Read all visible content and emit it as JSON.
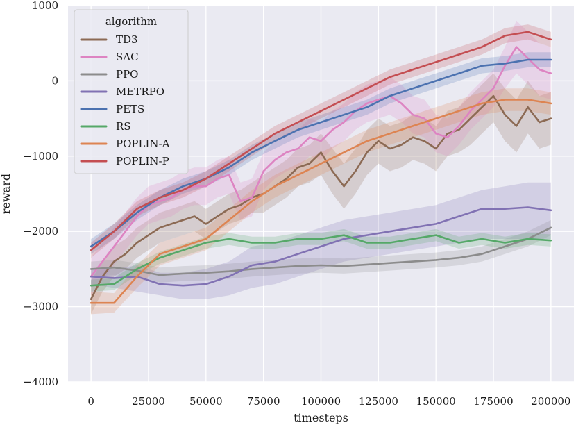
{
  "chart_data": {
    "type": "line",
    "xlabel": "timesteps",
    "ylabel": "reward",
    "xlim": [
      -10000,
      210000
    ],
    "ylim": [
      -4000,
      1000
    ],
    "xticks": [
      0,
      25000,
      50000,
      75000,
      100000,
      125000,
      150000,
      175000,
      200000
    ],
    "yticks": [
      -4000,
      -3000,
      -2000,
      -1000,
      0,
      1000
    ],
    "xtick_labels": [
      "0",
      "25000",
      "50000",
      "75000",
      "100000",
      "125000",
      "150000",
      "175000",
      "200000"
    ],
    "ytick_labels": [
      "−4000",
      "−3000",
      "−2000",
      "−1000",
      "0",
      "1000"
    ],
    "grid": true,
    "background": "#eaeaf2",
    "legend": {
      "title": "algorithm",
      "placement": "top-left"
    },
    "series": [
      {
        "name": "TD3",
        "color": "#8c6a54",
        "x": [
          0,
          5000,
          10000,
          15000,
          20000,
          25000,
          30000,
          35000,
          40000,
          45000,
          50000,
          55000,
          60000,
          65000,
          70000,
          75000,
          80000,
          85000,
          90000,
          95000,
          100000,
          105000,
          110000,
          115000,
          120000,
          125000,
          130000,
          135000,
          140000,
          145000,
          150000,
          155000,
          160000,
          165000,
          170000,
          175000,
          180000,
          185000,
          190000,
          195000,
          200000
        ],
        "y": [
          -2900,
          -2600,
          -2400,
          -2300,
          -2150,
          -2050,
          -1950,
          -1900,
          -1850,
          -1800,
          -1900,
          -1800,
          -1700,
          -1650,
          -1550,
          -1500,
          -1400,
          -1300,
          -1150,
          -1100,
          -950,
          -1200,
          -1400,
          -1200,
          -950,
          -800,
          -900,
          -850,
          -750,
          -800,
          -900,
          -700,
          -650,
          -500,
          -350,
          -200,
          -450,
          -600,
          -350,
          -550,
          -500
        ],
        "lo": [
          -3100,
          -2800,
          -2600,
          -2500,
          -2350,
          -2250,
          -2150,
          -2100,
          -2050,
          -2000,
          -2100,
          -2000,
          -1900,
          -1850,
          -1750,
          -1750,
          -1650,
          -1550,
          -1400,
          -1350,
          -1250,
          -1500,
          -1700,
          -1500,
          -1250,
          -1100,
          -1200,
          -1150,
          -1050,
          -1100,
          -1200,
          -1000,
          -950,
          -850,
          -700,
          -550,
          -800,
          -950,
          -700,
          -900,
          -850
        ],
        "hi": [
          -2650,
          -2400,
          -2200,
          -2100,
          -1950,
          -1850,
          -1750,
          -1700,
          -1650,
          -1600,
          -1700,
          -1600,
          -1500,
          -1450,
          -1350,
          -1250,
          -1150,
          -1050,
          -900,
          -850,
          -700,
          -900,
          -1100,
          -900,
          -650,
          -500,
          -600,
          -550,
          -450,
          -500,
          -600,
          -400,
          -350,
          -200,
          -50,
          100,
          -100,
          -250,
          0,
          -200,
          -150
        ]
      },
      {
        "name": "SAC",
        "color": "#dd84c2",
        "x": [
          0,
          5000,
          10000,
          15000,
          20000,
          25000,
          30000,
          35000,
          40000,
          45000,
          50000,
          55000,
          60000,
          65000,
          70000,
          75000,
          80000,
          85000,
          90000,
          95000,
          100000,
          105000,
          110000,
          115000,
          120000,
          125000,
          130000,
          135000,
          140000,
          145000,
          150000,
          155000,
          160000,
          165000,
          170000,
          175000,
          180000,
          185000,
          190000,
          195000,
          200000
        ],
        "y": [
          -2600,
          -2400,
          -2200,
          -2000,
          -1800,
          -1650,
          -1600,
          -1550,
          -1450,
          -1400,
          -1400,
          -1300,
          -1250,
          -1600,
          -1550,
          -1200,
          -1050,
          -950,
          -900,
          -750,
          -800,
          -650,
          -550,
          -400,
          -300,
          -250,
          -200,
          -300,
          -450,
          -500,
          -700,
          -750,
          -600,
          -400,
          -250,
          -100,
          200,
          450,
          300,
          150,
          100
        ],
        "lo": [
          -2850,
          -2650,
          -2450,
          -2250,
          -2050,
          -1900,
          -1850,
          -1800,
          -1700,
          -1650,
          -1650,
          -1550,
          -1500,
          -1850,
          -1800,
          -1450,
          -1300,
          -1200,
          -1150,
          -1000,
          -1050,
          -900,
          -800,
          -650,
          -550,
          -500,
          -450,
          -550,
          -700,
          -750,
          -950,
          -1000,
          -850,
          -650,
          -500,
          -350,
          -100,
          100,
          -50,
          -200,
          -250
        ],
        "hi": [
          -2350,
          -2150,
          -1950,
          -1750,
          -1550,
          -1400,
          -1350,
          -1300,
          -1200,
          -1150,
          -1150,
          -1050,
          -1000,
          -1350,
          -1300,
          -950,
          -800,
          -700,
          -650,
          -500,
          -550,
          -400,
          -300,
          -150,
          -50,
          0,
          50,
          -50,
          -200,
          -250,
          -450,
          -500,
          -350,
          -150,
          0,
          150,
          450,
          800,
          650,
          500,
          450
        ]
      },
      {
        "name": "PPO",
        "color": "#8c8c8c",
        "x": [
          0,
          10000,
          20000,
          30000,
          40000,
          50000,
          60000,
          70000,
          80000,
          90000,
          100000,
          110000,
          120000,
          130000,
          140000,
          150000,
          160000,
          170000,
          180000,
          190000,
          200000
        ],
        "y": [
          -2500,
          -2480,
          -2520,
          -2580,
          -2560,
          -2550,
          -2530,
          -2500,
          -2480,
          -2460,
          -2450,
          -2460,
          -2440,
          -2420,
          -2400,
          -2380,
          -2350,
          -2300,
          -2200,
          -2100,
          -1950
        ],
        "lo": [
          -2600,
          -2580,
          -2620,
          -2680,
          -2660,
          -2650,
          -2630,
          -2600,
          -2580,
          -2560,
          -2550,
          -2560,
          -2540,
          -2520,
          -2500,
          -2480,
          -2450,
          -2400,
          -2300,
          -2200,
          -2050
        ],
        "hi": [
          -2400,
          -2380,
          -2420,
          -2480,
          -2460,
          -2450,
          -2430,
          -2400,
          -2380,
          -2360,
          -2350,
          -2360,
          -2340,
          -2320,
          -2300,
          -2280,
          -2250,
          -2200,
          -2100,
          -2000,
          -1850
        ]
      },
      {
        "name": "METRPO",
        "color": "#8172b3",
        "x": [
          0,
          10000,
          20000,
          30000,
          40000,
          50000,
          60000,
          70000,
          80000,
          90000,
          100000,
          110000,
          120000,
          130000,
          140000,
          150000,
          160000,
          170000,
          180000,
          190000,
          200000
        ],
        "y": [
          -2600,
          -2620,
          -2600,
          -2700,
          -2720,
          -2700,
          -2600,
          -2450,
          -2400,
          -2300,
          -2200,
          -2100,
          -2050,
          -2000,
          -1950,
          -1900,
          -1800,
          -1700,
          -1700,
          -1680,
          -1720
        ],
        "lo": [
          -2700,
          -2750,
          -2800,
          -2850,
          -2900,
          -2900,
          -2850,
          -2750,
          -2700,
          -2600,
          -2500,
          -2400,
          -2350,
          -2300,
          -2250,
          -2200,
          -2150,
          -2100,
          -2100,
          -2100,
          -2100
        ],
        "hi": [
          -2500,
          -2500,
          -2450,
          -2550,
          -2550,
          -2500,
          -2400,
          -2200,
          -2150,
          -2050,
          -1950,
          -1850,
          -1800,
          -1750,
          -1700,
          -1650,
          -1550,
          -1450,
          -1400,
          -1350,
          -1350
        ]
      },
      {
        "name": "PETS",
        "color": "#4c72b0",
        "x": [
          0,
          10000,
          20000,
          30000,
          40000,
          50000,
          60000,
          70000,
          80000,
          90000,
          100000,
          110000,
          120000,
          130000,
          140000,
          150000,
          160000,
          170000,
          180000,
          190000,
          200000
        ],
        "y": [
          -2200,
          -2000,
          -1750,
          -1550,
          -1400,
          -1300,
          -1150,
          -950,
          -800,
          -650,
          -550,
          -450,
          -350,
          -200,
          -100,
          0,
          100,
          200,
          230,
          280,
          280
        ],
        "lo": [
          -2300,
          -2100,
          -1850,
          -1650,
          -1500,
          -1400,
          -1250,
          -1050,
          -900,
          -750,
          -650,
          -550,
          -450,
          -300,
          -200,
          -100,
          0,
          100,
          130,
          180,
          180
        ],
        "hi": [
          -2100,
          -1900,
          -1650,
          -1450,
          -1300,
          -1200,
          -1050,
          -850,
          -700,
          -550,
          -450,
          -350,
          -250,
          -100,
          0,
          100,
          200,
          300,
          330,
          380,
          380
        ]
      },
      {
        "name": "RS",
        "color": "#55a868",
        "x": [
          0,
          10000,
          20000,
          30000,
          40000,
          50000,
          60000,
          70000,
          80000,
          90000,
          100000,
          110000,
          120000,
          130000,
          140000,
          150000,
          160000,
          170000,
          180000,
          190000,
          200000
        ],
        "y": [
          -2720,
          -2700,
          -2500,
          -2350,
          -2250,
          -2150,
          -2100,
          -2150,
          -2150,
          -2100,
          -2100,
          -2050,
          -2150,
          -2150,
          -2100,
          -2050,
          -2150,
          -2100,
          -2150,
          -2100,
          -2120
        ],
        "lo": [
          -2800,
          -2780,
          -2580,
          -2430,
          -2330,
          -2230,
          -2180,
          -2230,
          -2230,
          -2180,
          -2180,
          -2130,
          -2230,
          -2230,
          -2180,
          -2130,
          -2230,
          -2180,
          -2230,
          -2180,
          -2200
        ],
        "hi": [
          -2640,
          -2620,
          -2420,
          -2270,
          -2170,
          -2070,
          -2020,
          -2070,
          -2070,
          -2020,
          -2020,
          -1970,
          -2070,
          -2070,
          -2020,
          -1970,
          -2070,
          -2020,
          -2070,
          -2020,
          -2040
        ]
      },
      {
        "name": "POPLIN-A",
        "color": "#dd8452",
        "x": [
          0,
          10000,
          20000,
          30000,
          40000,
          50000,
          60000,
          70000,
          80000,
          90000,
          100000,
          110000,
          120000,
          130000,
          140000,
          150000,
          160000,
          170000,
          180000,
          190000,
          200000
        ],
        "y": [
          -2950,
          -2950,
          -2600,
          -2300,
          -2200,
          -2100,
          -1850,
          -1600,
          -1400,
          -1250,
          -1100,
          -950,
          -800,
          -700,
          -600,
          -500,
          -400,
          -300,
          -250,
          -250,
          -300
        ],
        "lo": [
          -3100,
          -3080,
          -2750,
          -2450,
          -2350,
          -2250,
          -2000,
          -1750,
          -1550,
          -1400,
          -1250,
          -1100,
          -950,
          -850,
          -750,
          -650,
          -550,
          -450,
          -400,
          -400,
          -450
        ],
        "hi": [
          -2800,
          -2820,
          -2450,
          -2150,
          -2050,
          -1950,
          -1700,
          -1450,
          -1250,
          -1100,
          -950,
          -800,
          -650,
          -550,
          -450,
          -350,
          -250,
          -150,
          -100,
          -100,
          -150
        ]
      },
      {
        "name": "POPLIN-P",
        "color": "#c44e52",
        "x": [
          0,
          10000,
          20000,
          30000,
          40000,
          50000,
          60000,
          70000,
          80000,
          90000,
          100000,
          110000,
          120000,
          130000,
          140000,
          150000,
          160000,
          170000,
          180000,
          190000,
          200000
        ],
        "y": [
          -2250,
          -2000,
          -1700,
          -1550,
          -1450,
          -1300,
          -1100,
          -900,
          -700,
          -550,
          -400,
          -250,
          -100,
          50,
          150,
          250,
          350,
          450,
          600,
          650,
          550
        ],
        "lo": [
          -2350,
          -2100,
          -1800,
          -1650,
          -1550,
          -1400,
          -1200,
          -1000,
          -800,
          -650,
          -500,
          -350,
          -200,
          -50,
          50,
          150,
          250,
          350,
          500,
          550,
          450
        ],
        "hi": [
          -2150,
          -1900,
          -1600,
          -1450,
          -1350,
          -1200,
          -1000,
          -800,
          -600,
          -450,
          -300,
          -150,
          0,
          150,
          250,
          350,
          450,
          550,
          700,
          750,
          650
        ]
      }
    ]
  }
}
